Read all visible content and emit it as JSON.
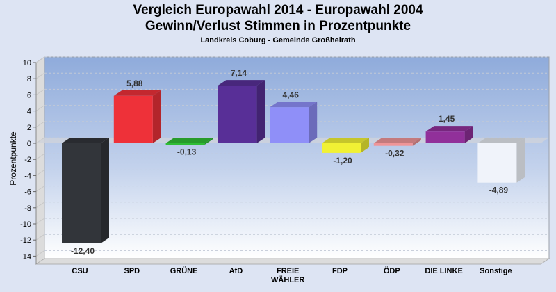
{
  "chart_data": {
    "type": "bar",
    "title": "Vergleich Europawahl 2014 - Europawahl 2004",
    "subtitle": "Gewinn/Verlust Stimmen in Prozentpunkte",
    "subsubtitle": "Landkreis Coburg - Gemeinde Großheirath",
    "xlabel": "",
    "ylabel": "Prozentpunkte",
    "ylim": [
      -15,
      10
    ],
    "yticks": [
      10,
      8,
      6,
      4,
      2,
      0,
      -2,
      -4,
      -6,
      -8,
      -10,
      -12,
      -14
    ],
    "grid": true,
    "three_d": true,
    "categories": [
      "CSU",
      "SPD",
      "GRÜNE",
      "AfD",
      "FREIE WÄHLER",
      "FDP",
      "ÖDP",
      "DIE LINKE",
      "Sonstige"
    ],
    "category_lines": [
      [
        "CSU"
      ],
      [
        "SPD"
      ],
      [
        "GRÜNE"
      ],
      [
        "AfD"
      ],
      [
        "FREIE",
        "WÄHLER"
      ],
      [
        "FDP"
      ],
      [
        "ÖDP"
      ],
      [
        "DIE LINKE"
      ],
      [
        "Sonstige"
      ]
    ],
    "values": [
      -12.4,
      5.88,
      -0.13,
      7.14,
      4.46,
      -1.2,
      -0.32,
      1.45,
      -4.89
    ],
    "data_labels": [
      "-12,40",
      "5,88",
      "-0,13",
      "7,14",
      "4,46",
      "-1,20",
      "-0,32",
      "1,45",
      "-4,89"
    ],
    "colors": [
      "#32353a",
      "#ee3139",
      "#2fbd35",
      "#582f97",
      "#8f8ff8",
      "#f1f134",
      "#ef9598",
      "#91309a",
      "#f0f3fa"
    ]
  }
}
